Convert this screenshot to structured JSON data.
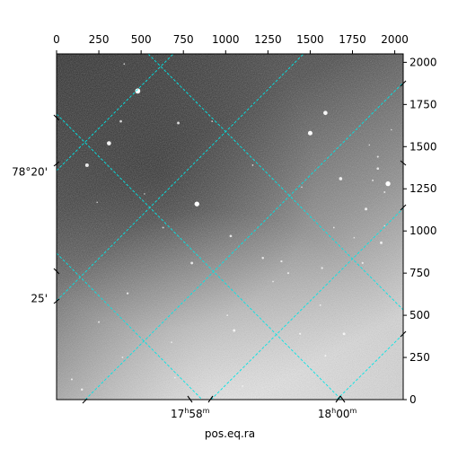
{
  "chart_data": {
    "type": "image",
    "xlabel": "pos.eq.ra",
    "x_pixel_axis": {
      "range": [
        0,
        2050
      ],
      "ticks": [
        0,
        250,
        500,
        750,
        1000,
        1250,
        1500,
        1750,
        2000
      ],
      "tick_labels": [
        "0",
        "250",
        "500",
        "750",
        "1000",
        "1250",
        "1500",
        "1750",
        "2000"
      ]
    },
    "y_pixel_axis": {
      "range": [
        0,
        2050
      ],
      "ticks": [
        0,
        250,
        500,
        750,
        1000,
        1250,
        1500,
        1750,
        2000
      ],
      "tick_labels": [
        "0",
        "250",
        "500",
        "750",
        "1000",
        "1250",
        "1500",
        "1750",
        "2000"
      ]
    },
    "ra_ticks": [
      {
        "h": "17",
        "m": "58",
        "x_pix": 790
      },
      {
        "h": "18",
        "m": "00",
        "x_pix": 1660
      }
    ],
    "dec_ticks": [
      {
        "label": "78°20'",
        "y_pix": 1350
      },
      {
        "label": "25'",
        "y_pix": 600
      }
    ],
    "grid": true,
    "grid_color": "#00e5e5",
    "image_colormap": "gray",
    "stars": [
      {
        "x": 480,
        "y": 1830,
        "b": 3.2
      },
      {
        "x": 310,
        "y": 1520,
        "b": 2.6
      },
      {
        "x": 1500,
        "y": 1580,
        "b": 2.8
      },
      {
        "x": 1590,
        "y": 1700,
        "b": 2.6
      },
      {
        "x": 830,
        "y": 1160,
        "b": 3.0
      },
      {
        "x": 1960,
        "y": 1280,
        "b": 3.0
      },
      {
        "x": 180,
        "y": 1390,
        "b": 2.2
      },
      {
        "x": 1680,
        "y": 1310,
        "b": 2.0
      },
      {
        "x": 720,
        "y": 1640,
        "b": 1.6
      },
      {
        "x": 1030,
        "y": 970,
        "b": 1.5
      },
      {
        "x": 1220,
        "y": 840,
        "b": 1.4
      },
      {
        "x": 1920,
        "y": 930,
        "b": 1.6
      },
      {
        "x": 1900,
        "y": 1370,
        "b": 1.5
      },
      {
        "x": 1830,
        "y": 1130,
        "b": 1.7
      },
      {
        "x": 800,
        "y": 810,
        "b": 1.6
      },
      {
        "x": 1050,
        "y": 410,
        "b": 1.6
      },
      {
        "x": 1700,
        "y": 390,
        "b": 1.6
      },
      {
        "x": 1570,
        "y": 780,
        "b": 1.3
      },
      {
        "x": 1370,
        "y": 750,
        "b": 1.2
      },
      {
        "x": 420,
        "y": 630,
        "b": 1.3
      },
      {
        "x": 380,
        "y": 1650,
        "b": 1.5
      },
      {
        "x": 1330,
        "y": 820,
        "b": 1.3
      },
      {
        "x": 1900,
        "y": 1440,
        "b": 1.2
      },
      {
        "x": 1940,
        "y": 1230,
        "b": 1.1
      },
      {
        "x": 1440,
        "y": 390,
        "b": 1.2
      },
      {
        "x": 1590,
        "y": 260,
        "b": 1.1
      },
      {
        "x": 1810,
        "y": 810,
        "b": 1.2
      },
      {
        "x": 150,
        "y": 60,
        "b": 1.4
      },
      {
        "x": 90,
        "y": 120,
        "b": 1.2
      },
      {
        "x": 1640,
        "y": 1020,
        "b": 1.0
      },
      {
        "x": 630,
        "y": 1020,
        "b": 1.1
      },
      {
        "x": 920,
        "y": 1650,
        "b": 1.0
      },
      {
        "x": 1160,
        "y": 1390,
        "b": 1.0
      },
      {
        "x": 250,
        "y": 460,
        "b": 1.1
      },
      {
        "x": 390,
        "y": 250,
        "b": 1.0
      },
      {
        "x": 680,
        "y": 340,
        "b": 1.0
      },
      {
        "x": 1870,
        "y": 1300,
        "b": 1.1
      },
      {
        "x": 1010,
        "y": 500,
        "b": 1.0
      },
      {
        "x": 1560,
        "y": 560,
        "b": 1.0
      },
      {
        "x": 240,
        "y": 1170,
        "b": 0.9
      },
      {
        "x": 1940,
        "y": 1030,
        "b": 0.9
      },
      {
        "x": 1980,
        "y": 1600,
        "b": 0.9
      },
      {
        "x": 1280,
        "y": 700,
        "b": 1.0
      },
      {
        "x": 400,
        "y": 1990,
        "b": 1.0
      },
      {
        "x": 520,
        "y": 1220,
        "b": 0.9
      },
      {
        "x": 1850,
        "y": 1510,
        "b": 0.9
      },
      {
        "x": 1450,
        "y": 1260,
        "b": 0.9
      },
      {
        "x": 1760,
        "y": 960,
        "b": 0.9
      },
      {
        "x": 1100,
        "y": 80,
        "b": 0.9
      },
      {
        "x": 700,
        "y": 130,
        "b": 0.9
      }
    ]
  }
}
